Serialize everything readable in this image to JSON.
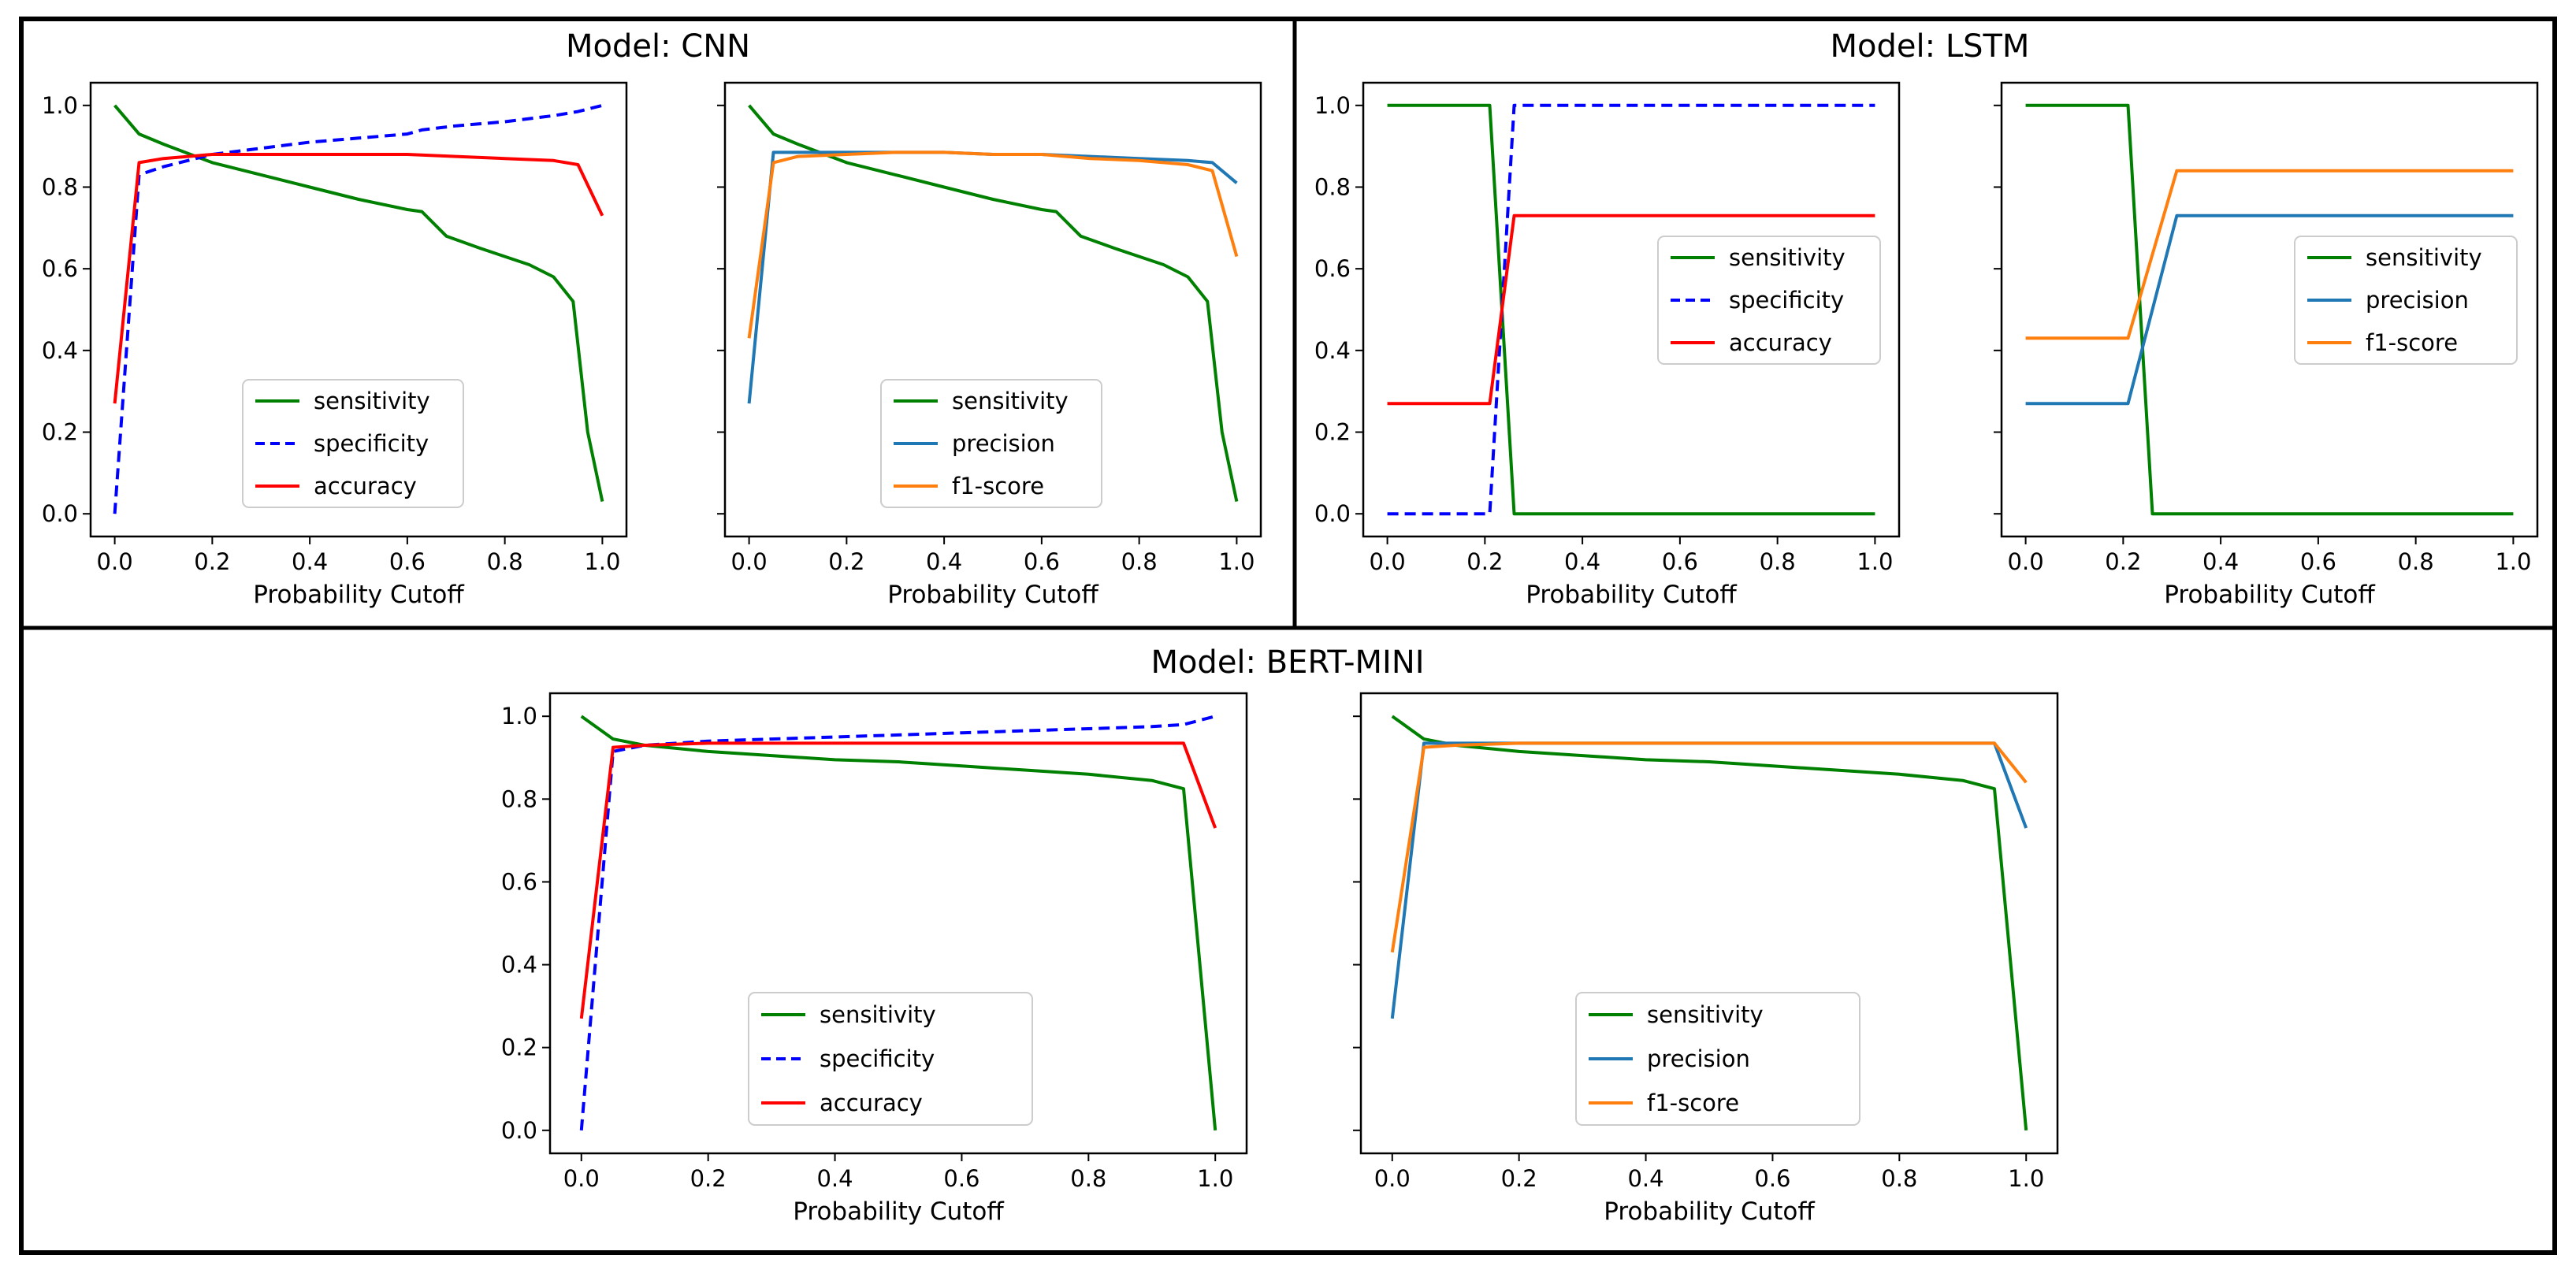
{
  "panels": [
    {
      "id": "cnn",
      "title": "Model: CNN"
    },
    {
      "id": "lstm",
      "title": "Model: LSTM"
    },
    {
      "id": "bert",
      "title": "Model: BERT-MINI"
    }
  ],
  "colors": {
    "sensitivity": "#008000",
    "specificity": "#0000ff",
    "accuracy": "#ff0000",
    "precision": "#1f77b4",
    "f1-score": "#ff7f0e"
  },
  "chart_data": [
    {
      "id": "cnn-left",
      "panel": "Model: CNN",
      "type": "line",
      "xlabel": "Probability Cutoff",
      "ylabel": "",
      "xlim": [
        0,
        1
      ],
      "ylim": [
        0,
        1
      ],
      "xticks": [
        "0.0",
        "0.2",
        "0.4",
        "0.6",
        "0.8",
        "1.0"
      ],
      "yticks": [
        "0.0",
        "0.2",
        "0.4",
        "0.6",
        "0.8",
        "1.0"
      ],
      "legend_position": "lower-center",
      "series": [
        {
          "name": "sensitivity",
          "style": "solid",
          "x": [
            0,
            0.05,
            0.1,
            0.2,
            0.3,
            0.4,
            0.5,
            0.6,
            0.63,
            0.68,
            0.75,
            0.8,
            0.85,
            0.9,
            0.94,
            0.97,
            1.0
          ],
          "y": [
            1.0,
            0.93,
            0.905,
            0.86,
            0.83,
            0.8,
            0.77,
            0.745,
            0.74,
            0.68,
            0.65,
            0.63,
            0.61,
            0.58,
            0.52,
            0.2,
            0.03
          ]
        },
        {
          "name": "specificity",
          "style": "dashed",
          "x": [
            0,
            0.05,
            0.1,
            0.2,
            0.3,
            0.4,
            0.5,
            0.6,
            0.63,
            0.7,
            0.8,
            0.9,
            0.95,
            1.0
          ],
          "y": [
            0.0,
            0.83,
            0.85,
            0.88,
            0.895,
            0.91,
            0.92,
            0.93,
            0.94,
            0.95,
            0.96,
            0.975,
            0.985,
            1.0
          ],
          "dashed": true
        },
        {
          "name": "accuracy",
          "style": "solid",
          "x": [
            0,
            0.05,
            0.1,
            0.2,
            0.3,
            0.4,
            0.5,
            0.6,
            0.7,
            0.8,
            0.9,
            0.95,
            1.0
          ],
          "y": [
            0.27,
            0.86,
            0.87,
            0.88,
            0.88,
            0.88,
            0.88,
            0.88,
            0.875,
            0.87,
            0.865,
            0.855,
            0.73
          ]
        }
      ]
    },
    {
      "id": "cnn-right",
      "panel": "Model: CNN",
      "type": "line",
      "xlabel": "Probability Cutoff",
      "ylabel": "",
      "xlim": [
        0,
        1
      ],
      "ylim": [
        0,
        1
      ],
      "xticks": [
        "0.0",
        "0.2",
        "0.4",
        "0.6",
        "0.8",
        "1.0"
      ],
      "yticks": [],
      "legend_position": "lower-center",
      "series": [
        {
          "name": "sensitivity",
          "style": "solid",
          "x": [
            0,
            0.05,
            0.1,
            0.2,
            0.3,
            0.4,
            0.5,
            0.6,
            0.63,
            0.68,
            0.75,
            0.8,
            0.85,
            0.9,
            0.94,
            0.97,
            1.0
          ],
          "y": [
            1.0,
            0.93,
            0.905,
            0.86,
            0.83,
            0.8,
            0.77,
            0.745,
            0.74,
            0.68,
            0.65,
            0.63,
            0.61,
            0.58,
            0.52,
            0.2,
            0.03
          ]
        },
        {
          "name": "precision",
          "style": "solid",
          "x": [
            0,
            0.05,
            0.1,
            0.2,
            0.3,
            0.4,
            0.5,
            0.6,
            0.7,
            0.8,
            0.9,
            0.95,
            1.0
          ],
          "y": [
            0.27,
            0.885,
            0.885,
            0.885,
            0.885,
            0.885,
            0.88,
            0.88,
            0.875,
            0.87,
            0.865,
            0.86,
            0.81
          ]
        },
        {
          "name": "f1-score",
          "style": "solid",
          "x": [
            0,
            0.05,
            0.1,
            0.2,
            0.3,
            0.4,
            0.5,
            0.6,
            0.7,
            0.8,
            0.9,
            0.95,
            1.0
          ],
          "y": [
            0.43,
            0.86,
            0.875,
            0.88,
            0.885,
            0.885,
            0.88,
            0.88,
            0.87,
            0.865,
            0.855,
            0.84,
            0.63
          ]
        }
      ]
    },
    {
      "id": "lstm-left",
      "panel": "Model: LSTM",
      "type": "line",
      "xlabel": "Probability Cutoff",
      "ylabel": "",
      "xlim": [
        0,
        1
      ],
      "ylim": [
        0,
        1
      ],
      "xticks": [
        "0.0",
        "0.2",
        "0.4",
        "0.6",
        "0.8",
        "1.0"
      ],
      "yticks": [
        "0.0",
        "0.2",
        "0.4",
        "0.6",
        "0.8",
        "1.0"
      ],
      "legend_position": "center-right",
      "series": [
        {
          "name": "sensitivity",
          "style": "solid",
          "x": [
            0,
            0.21,
            0.26,
            1.0
          ],
          "y": [
            1.0,
            1.0,
            0.0,
            0.0
          ]
        },
        {
          "name": "specificity",
          "style": "dashed",
          "x": [
            0,
            0.21,
            0.26,
            1.0
          ],
          "y": [
            0.0,
            0.0,
            1.0,
            1.0
          ]
        },
        {
          "name": "accuracy",
          "style": "solid",
          "x": [
            0,
            0.21,
            0.26,
            1.0
          ],
          "y": [
            0.27,
            0.27,
            0.73,
            0.73
          ]
        }
      ]
    },
    {
      "id": "lstm-right",
      "panel": "Model: LSTM",
      "type": "line",
      "xlabel": "Probability Cutoff",
      "ylabel": "",
      "xlim": [
        0,
        1
      ],
      "ylim": [
        0,
        1
      ],
      "xticks": [
        "0.0",
        "0.2",
        "0.4",
        "0.6",
        "0.8",
        "1.0"
      ],
      "yticks": [],
      "legend_position": "center-right",
      "series": [
        {
          "name": "sensitivity",
          "style": "solid",
          "x": [
            0,
            0.21,
            0.26,
            1.0
          ],
          "y": [
            1.0,
            1.0,
            0.0,
            0.0
          ]
        },
        {
          "name": "precision",
          "style": "solid",
          "x": [
            0,
            0.21,
            0.31,
            1.0
          ],
          "y": [
            0.27,
            0.27,
            0.73,
            0.73
          ]
        },
        {
          "name": "f1-score",
          "style": "solid",
          "x": [
            0,
            0.21,
            0.31,
            1.0
          ],
          "y": [
            0.43,
            0.43,
            0.84,
            0.84
          ]
        }
      ]
    },
    {
      "id": "bert-left",
      "panel": "Model: BERT-MINI",
      "type": "line",
      "xlabel": "Probability Cutoff",
      "ylabel": "",
      "xlim": [
        0,
        1
      ],
      "ylim": [
        0,
        1
      ],
      "xticks": [
        "0.0",
        "0.2",
        "0.4",
        "0.6",
        "0.8",
        "1.0"
      ],
      "yticks": [
        "0.0",
        "0.2",
        "0.4",
        "0.6",
        "0.8",
        "1.0"
      ],
      "legend_position": "lower-center",
      "series": [
        {
          "name": "sensitivity",
          "style": "solid",
          "x": [
            0,
            0.05,
            0.1,
            0.2,
            0.3,
            0.4,
            0.5,
            0.6,
            0.7,
            0.8,
            0.9,
            0.95,
            1.0
          ],
          "y": [
            1.0,
            0.945,
            0.93,
            0.915,
            0.905,
            0.895,
            0.89,
            0.88,
            0.87,
            0.86,
            0.845,
            0.825,
            0.0
          ]
        },
        {
          "name": "specificity",
          "style": "dashed",
          "x": [
            0,
            0.05,
            0.1,
            0.2,
            0.3,
            0.4,
            0.5,
            0.6,
            0.7,
            0.8,
            0.9,
            0.95,
            1.0
          ],
          "y": [
            0.0,
            0.915,
            0.93,
            0.94,
            0.945,
            0.95,
            0.955,
            0.96,
            0.965,
            0.97,
            0.975,
            0.98,
            1.0
          ]
        },
        {
          "name": "accuracy",
          "style": "solid",
          "x": [
            0,
            0.05,
            0.1,
            0.2,
            0.3,
            0.4,
            0.5,
            0.6,
            0.7,
            0.8,
            0.9,
            0.95,
            1.0
          ],
          "y": [
            0.27,
            0.925,
            0.93,
            0.935,
            0.935,
            0.935,
            0.935,
            0.935,
            0.935,
            0.935,
            0.935,
            0.935,
            0.73
          ]
        }
      ]
    },
    {
      "id": "bert-right",
      "panel": "Model: BERT-MINI",
      "type": "line",
      "xlabel": "Probability Cutoff",
      "ylabel": "",
      "xlim": [
        0,
        1
      ],
      "ylim": [
        0,
        1
      ],
      "xticks": [
        "0.0",
        "0.2",
        "0.4",
        "0.6",
        "0.8",
        "1.0"
      ],
      "yticks": [],
      "legend_position": "lower-center",
      "series": [
        {
          "name": "sensitivity",
          "style": "solid",
          "x": [
            0,
            0.05,
            0.1,
            0.2,
            0.3,
            0.4,
            0.5,
            0.6,
            0.7,
            0.8,
            0.9,
            0.95,
            1.0
          ],
          "y": [
            1.0,
            0.945,
            0.93,
            0.915,
            0.905,
            0.895,
            0.89,
            0.88,
            0.87,
            0.86,
            0.845,
            0.825,
            0.0
          ]
        },
        {
          "name": "precision",
          "style": "solid",
          "x": [
            0,
            0.05,
            0.1,
            0.2,
            0.4,
            0.6,
            0.8,
            0.95,
            1.0
          ],
          "y": [
            0.27,
            0.935,
            0.935,
            0.935,
            0.935,
            0.935,
            0.935,
            0.935,
            0.73
          ]
        },
        {
          "name": "f1-score",
          "style": "solid",
          "x": [
            0,
            0.05,
            0.1,
            0.2,
            0.4,
            0.6,
            0.8,
            0.95,
            1.0
          ],
          "y": [
            0.43,
            0.925,
            0.93,
            0.935,
            0.935,
            0.935,
            0.935,
            0.935,
            0.84
          ]
        }
      ]
    }
  ]
}
